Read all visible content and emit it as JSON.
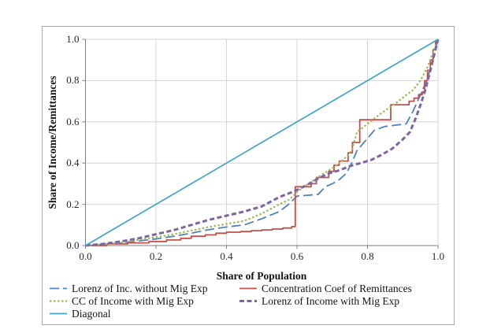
{
  "figure": {
    "x_axis_title": "Share of Population",
    "y_axis_title": "Share of Income/Remittances",
    "x_tick_labels": [
      "0.0",
      "0.2",
      "0.4",
      "0.6",
      "0.8",
      "1.0"
    ],
    "y_tick_labels": [
      "0.0",
      "0.2",
      "0.4",
      "0.6",
      "0.8",
      "1.0"
    ],
    "grid_color": "#d6d6d6",
    "axis_color": "#7f7f7f",
    "frame_color": "#a8a8a8"
  },
  "chart_data": {
    "type": "line",
    "title": "",
    "xlabel": "Share of Population",
    "ylabel": "Share of Income/Remittances",
    "xlim": [
      0,
      1
    ],
    "ylim": [
      0,
      1
    ],
    "x_ticks": [
      0,
      0.2,
      0.4,
      0.6,
      0.8,
      1.0
    ],
    "y_ticks": [
      0,
      0.2,
      0.4,
      0.6,
      0.8,
      1.0
    ],
    "grid": true,
    "legend_position": "bottom",
    "series": [
      {
        "name": "Lorenz of Inc. without Mig Exp",
        "color": "#4f81bd",
        "dash": "12 5",
        "width": 1.8,
        "step": false,
        "points": [
          [
            0,
            0
          ],
          [
            0.05,
            0.005
          ],
          [
            0.1,
            0.012
          ],
          [
            0.15,
            0.022
          ],
          [
            0.2,
            0.032
          ],
          [
            0.25,
            0.045
          ],
          [
            0.3,
            0.06
          ],
          [
            0.35,
            0.077
          ],
          [
            0.4,
            0.09
          ],
          [
            0.45,
            0.1
          ],
          [
            0.5,
            0.13
          ],
          [
            0.55,
            0.165
          ],
          [
            0.58,
            0.205
          ],
          [
            0.6,
            0.24
          ],
          [
            0.66,
            0.248
          ],
          [
            0.68,
            0.285
          ],
          [
            0.7,
            0.3
          ],
          [
            0.72,
            0.32
          ],
          [
            0.74,
            0.35
          ],
          [
            0.755,
            0.4
          ],
          [
            0.77,
            0.46
          ],
          [
            0.785,
            0.49
          ],
          [
            0.8,
            0.52
          ],
          [
            0.82,
            0.56
          ],
          [
            0.85,
            0.578
          ],
          [
            0.91,
            0.59
          ],
          [
            0.93,
            0.655
          ],
          [
            0.95,
            0.73
          ],
          [
            0.97,
            0.81
          ],
          [
            0.985,
            0.9
          ],
          [
            1,
            1
          ]
        ]
      },
      {
        "name": "Concentration Coef of Remittances",
        "color": "#c0504d",
        "dash": "",
        "width": 1.8,
        "step": true,
        "points": [
          [
            0,
            0
          ],
          [
            0.06,
            0.008
          ],
          [
            0.12,
            0.013
          ],
          [
            0.18,
            0.02
          ],
          [
            0.23,
            0.027
          ],
          [
            0.27,
            0.035
          ],
          [
            0.3,
            0.045
          ],
          [
            0.34,
            0.052
          ],
          [
            0.37,
            0.06
          ],
          [
            0.4,
            0.065
          ],
          [
            0.44,
            0.068
          ],
          [
            0.47,
            0.072
          ],
          [
            0.5,
            0.076
          ],
          [
            0.53,
            0.08
          ],
          [
            0.56,
            0.085
          ],
          [
            0.585,
            0.092
          ],
          [
            0.595,
            0.285
          ],
          [
            0.64,
            0.3
          ],
          [
            0.655,
            0.33
          ],
          [
            0.69,
            0.36
          ],
          [
            0.705,
            0.39
          ],
          [
            0.72,
            0.41
          ],
          [
            0.745,
            0.45
          ],
          [
            0.757,
            0.5
          ],
          [
            0.778,
            0.61
          ],
          [
            0.866,
            0.683
          ],
          [
            0.918,
            0.7
          ],
          [
            0.932,
            0.715
          ],
          [
            0.945,
            0.732
          ],
          [
            0.955,
            0.745
          ],
          [
            0.962,
            0.8
          ],
          [
            0.97,
            0.85
          ],
          [
            0.978,
            0.9
          ],
          [
            0.986,
            0.95
          ],
          [
            0.993,
            0.99
          ],
          [
            1,
            1
          ]
        ]
      },
      {
        "name": "CC of Income with Mig Exp",
        "color": "#9bbb59",
        "dash": "2.5 2.5",
        "width": 2.2,
        "step": false,
        "points": [
          [
            0,
            0
          ],
          [
            0.05,
            0.006
          ],
          [
            0.1,
            0.015
          ],
          [
            0.15,
            0.027
          ],
          [
            0.2,
            0.04
          ],
          [
            0.25,
            0.055
          ],
          [
            0.3,
            0.073
          ],
          [
            0.35,
            0.09
          ],
          [
            0.4,
            0.105
          ],
          [
            0.45,
            0.12
          ],
          [
            0.5,
            0.155
          ],
          [
            0.55,
            0.2
          ],
          [
            0.58,
            0.225
          ],
          [
            0.6,
            0.26
          ],
          [
            0.62,
            0.285
          ],
          [
            0.65,
            0.32
          ],
          [
            0.68,
            0.355
          ],
          [
            0.7,
            0.375
          ],
          [
            0.72,
            0.4
          ],
          [
            0.74,
            0.43
          ],
          [
            0.755,
            0.46
          ],
          [
            0.77,
            0.55
          ],
          [
            0.8,
            0.59
          ],
          [
            0.83,
            0.63
          ],
          [
            0.85,
            0.655
          ],
          [
            0.88,
            0.69
          ],
          [
            0.91,
            0.73
          ],
          [
            0.93,
            0.755
          ],
          [
            0.95,
            0.8
          ],
          [
            0.97,
            0.865
          ],
          [
            0.985,
            0.935
          ],
          [
            1,
            1
          ]
        ]
      },
      {
        "name": "Lorenz of Income with Mig Exp",
        "color": "#8064a2",
        "dash": "6 3.5",
        "width": 3,
        "step": false,
        "points": [
          [
            0,
            0
          ],
          [
            0.05,
            0.008
          ],
          [
            0.1,
            0.02
          ],
          [
            0.15,
            0.035
          ],
          [
            0.2,
            0.055
          ],
          [
            0.25,
            0.075
          ],
          [
            0.3,
            0.1
          ],
          [
            0.35,
            0.125
          ],
          [
            0.4,
            0.145
          ],
          [
            0.45,
            0.165
          ],
          [
            0.5,
            0.19
          ],
          [
            0.55,
            0.235
          ],
          [
            0.58,
            0.255
          ],
          [
            0.6,
            0.27
          ],
          [
            0.63,
            0.295
          ],
          [
            0.66,
            0.325
          ],
          [
            0.69,
            0.35
          ],
          [
            0.72,
            0.365
          ],
          [
            0.75,
            0.385
          ],
          [
            0.78,
            0.4
          ],
          [
            0.81,
            0.415
          ],
          [
            0.84,
            0.44
          ],
          [
            0.87,
            0.47
          ],
          [
            0.9,
            0.515
          ],
          [
            0.92,
            0.55
          ],
          [
            0.935,
            0.61
          ],
          [
            0.95,
            0.68
          ],
          [
            0.965,
            0.76
          ],
          [
            0.98,
            0.86
          ],
          [
            0.99,
            0.93
          ],
          [
            1,
            1
          ]
        ]
      },
      {
        "name": "Diagonal",
        "color": "#3fa5c5",
        "dash": "",
        "width": 1.7,
        "step": false,
        "points": [
          [
            0,
            0
          ],
          [
            1,
            1
          ]
        ]
      }
    ]
  }
}
